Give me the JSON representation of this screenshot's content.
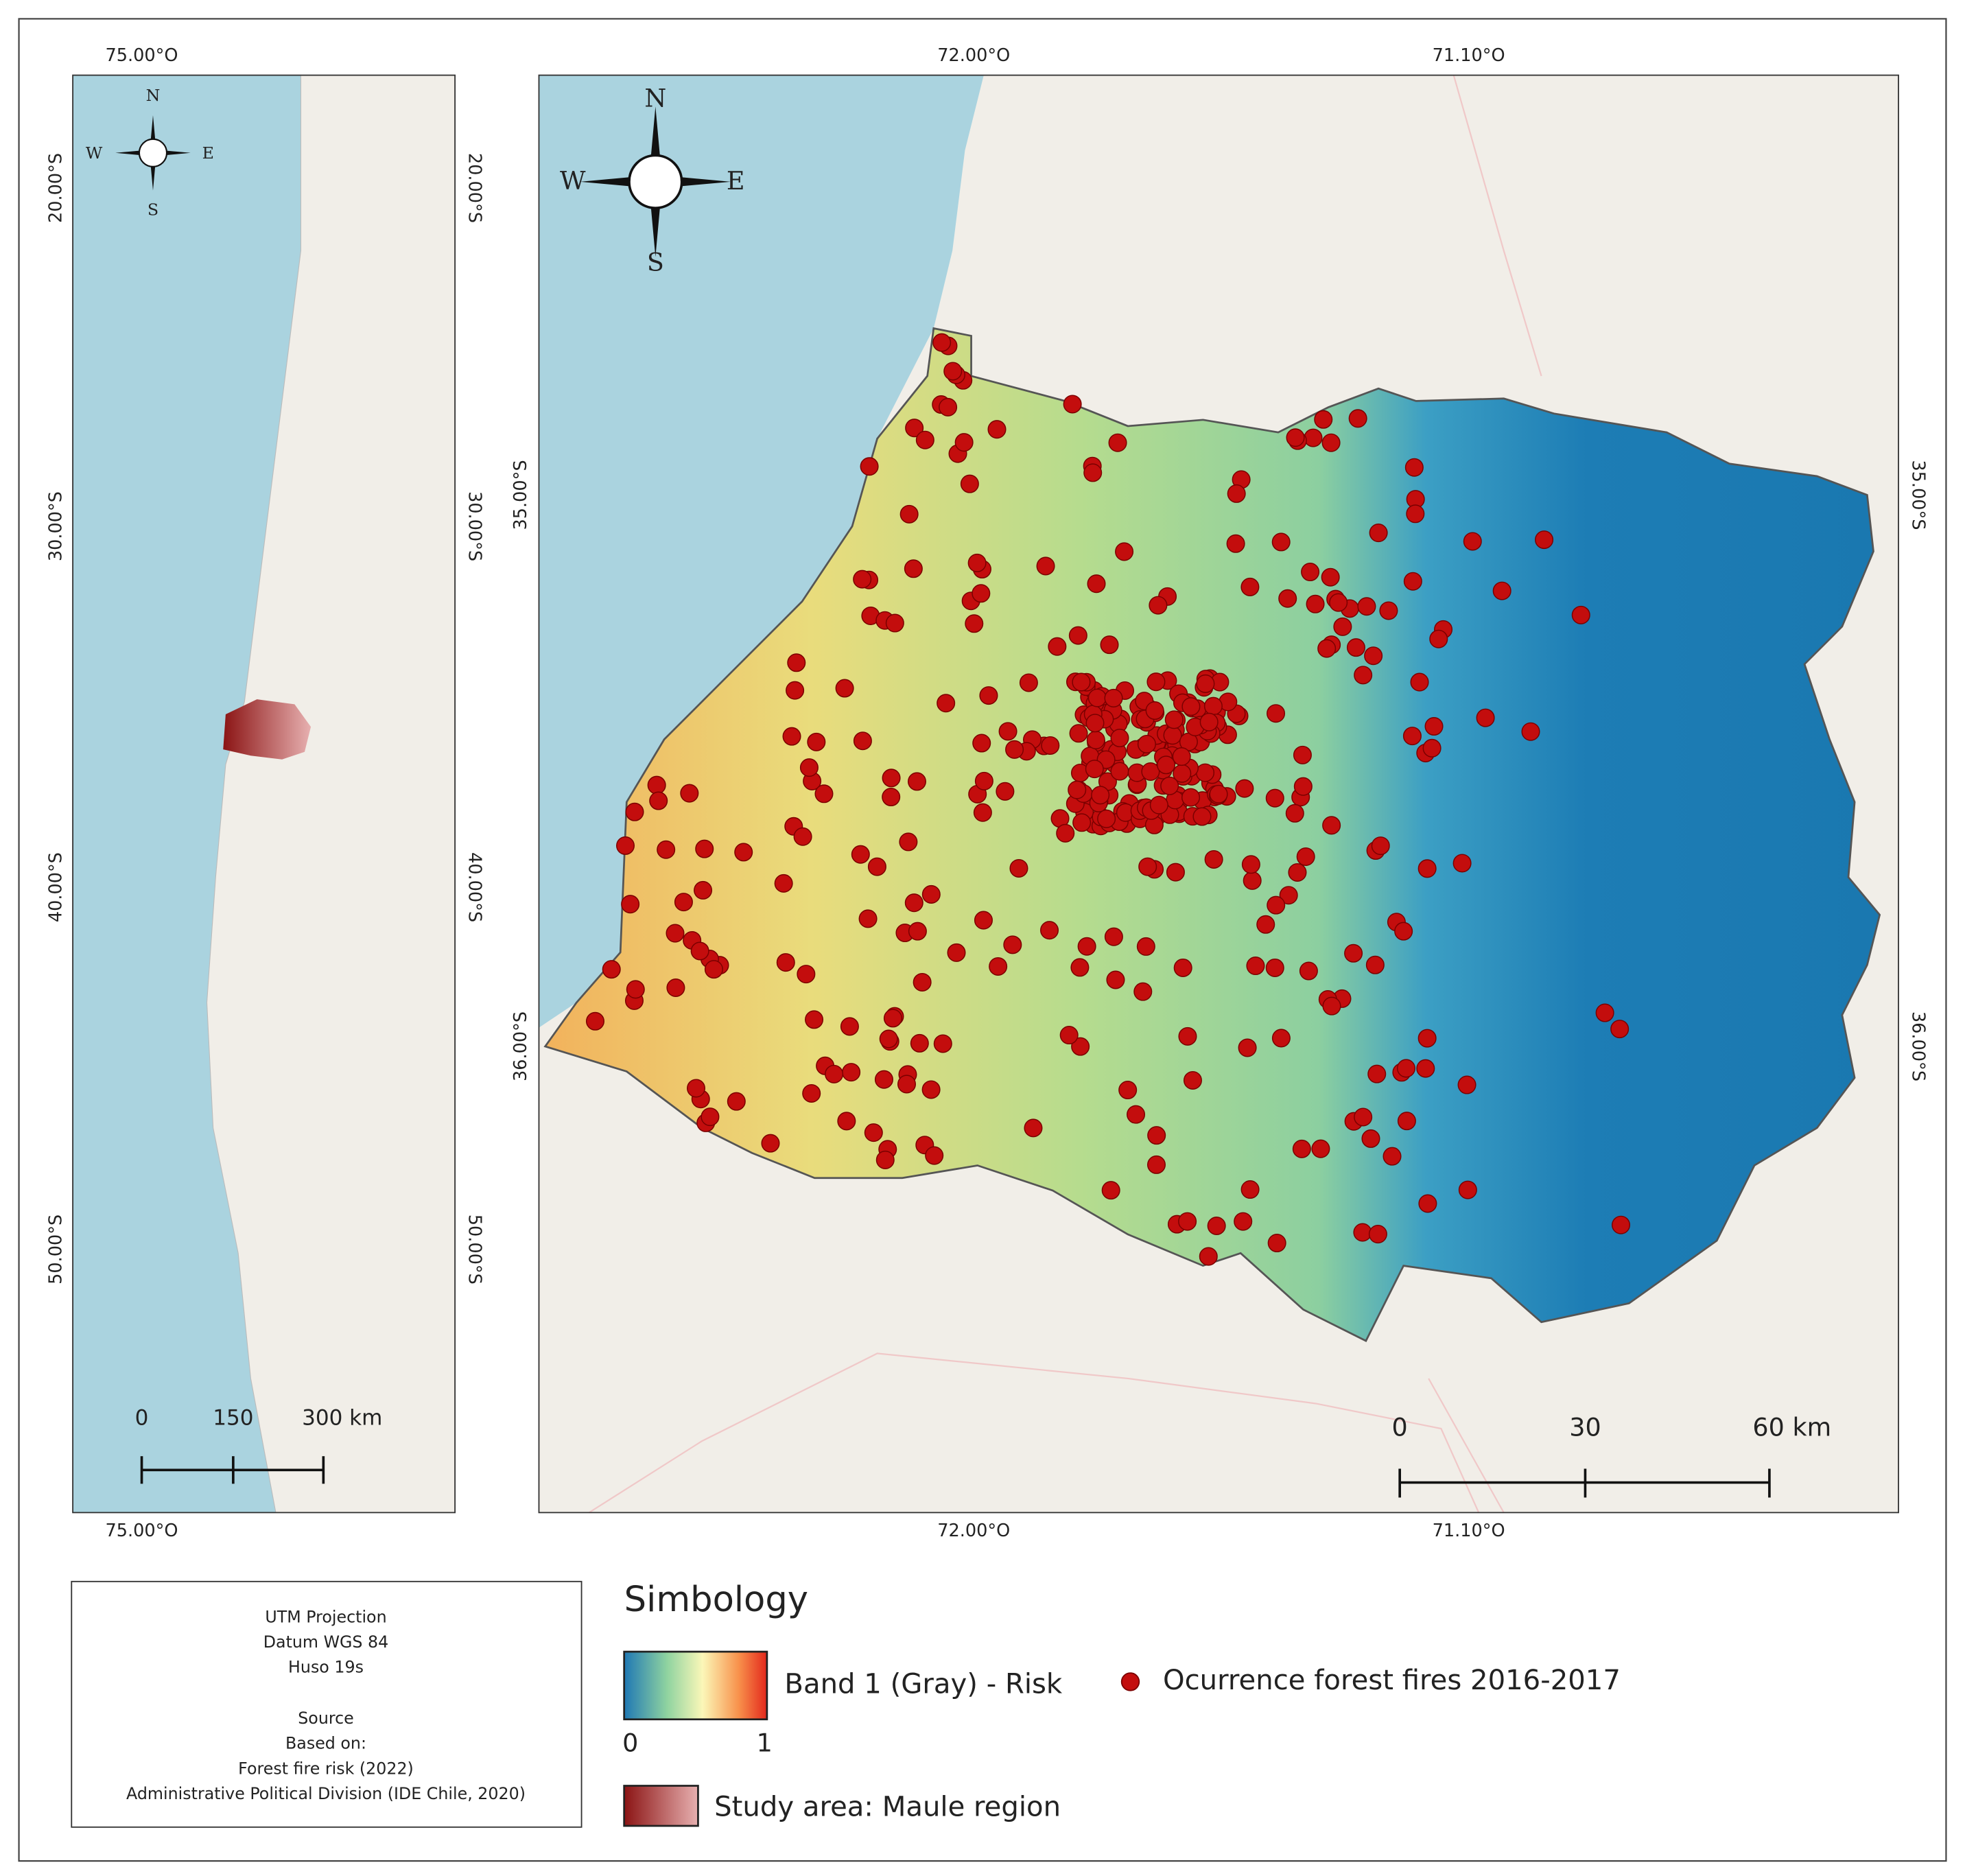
{
  "inset_map": {
    "top_labels": [
      "75.00°O"
    ],
    "bottom_labels": [
      "75.00°O"
    ],
    "left_labels": [
      "20.00°S",
      "30.00°S",
      "40.00°S",
      "50.00°S"
    ],
    "right_labels": [
      "20.00°S",
      "30.00°S",
      "40.00°S",
      "50.00°S"
    ],
    "compass": {
      "n": "N",
      "s": "S",
      "e": "E",
      "w": "W"
    },
    "scale_labels": [
      "0",
      "150",
      "300 km"
    ]
  },
  "main_map": {
    "top_labels": [
      "72.00°O",
      "71.10°O"
    ],
    "bottom_labels": [
      "72.00°O",
      "71.10°O"
    ],
    "left_labels": [
      "35.00°S",
      "36.00°S"
    ],
    "right_labels": [
      "35.00°S",
      "36.00°S"
    ],
    "compass": {
      "n": "N",
      "s": "S",
      "e": "E",
      "w": "W"
    },
    "scale_labels": [
      "0",
      "30",
      "60 km"
    ]
  },
  "info_box": {
    "lines": [
      "UTM Projection",
      "Datum WGS 84",
      "Huso 19s",
      "Source",
      "Based on:",
      "Forest fire risk (2022)",
      "Administrative Political Division (IDE Chile, 2020)"
    ]
  },
  "legend": {
    "title": "Simbology",
    "risk_label": "Band 1 (Gray) - Risk",
    "risk_min": "0",
    "risk_max": "1",
    "fires_label": "Ocurrence forest fires 2016-2017",
    "study_area_label": "Study area: Maule region"
  }
}
